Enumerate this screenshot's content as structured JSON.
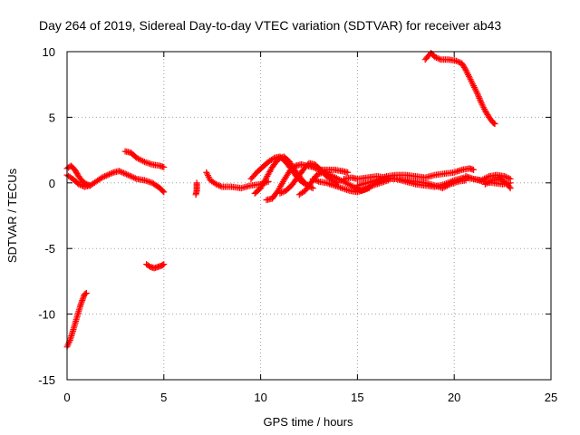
{
  "chart_data": {
    "type": "scatter",
    "title": "Day 264 of 2019, Sidereal Day-to-day VTEC variation (SDTVAR) for receiver ab43",
    "xlabel": "GPS time / hours",
    "ylabel": "SDTVAR / TECUs",
    "xlim": [
      0,
      25
    ],
    "ylim": [
      -15,
      10
    ],
    "x_ticks": [
      0,
      5,
      10,
      15,
      20,
      25
    ],
    "y_ticks": [
      -15,
      -10,
      -5,
      0,
      5,
      10
    ],
    "x_tick_labels": [
      "0",
      "5",
      "10",
      "15",
      "20",
      "25"
    ],
    "y_tick_labels": [
      "-15",
      "-10",
      "-5",
      "0",
      "5",
      "10"
    ],
    "grid": true,
    "marker": "+",
    "series": [
      {
        "name": "SDTVAR",
        "color": "#ff0000",
        "tracks": [
          [
            [
              0.0,
              1.1
            ],
            [
              0.2,
              1.3
            ],
            [
              0.4,
              1.0
            ],
            [
              0.6,
              0.5
            ],
            [
              0.8,
              0.1
            ],
            [
              1.0,
              -0.1
            ],
            [
              1.2,
              -0.2
            ],
            [
              1.5,
              0.1
            ],
            [
              1.8,
              0.4
            ],
            [
              2.1,
              0.6
            ],
            [
              2.4,
              0.8
            ],
            [
              2.7,
              0.9
            ],
            [
              3.0,
              0.7
            ],
            [
              3.3,
              0.5
            ],
            [
              3.6,
              0.3
            ],
            [
              4.0,
              0.2
            ],
            [
              4.4,
              0.0
            ],
            [
              4.8,
              -0.4
            ],
            [
              5.0,
              -0.7
            ]
          ],
          [
            [
              0.0,
              0.6
            ],
            [
              0.3,
              0.3
            ],
            [
              0.6,
              -0.1
            ],
            [
              0.9,
              -0.3
            ],
            [
              1.2,
              -0.2
            ]
          ],
          [
            [
              3.0,
              2.4
            ],
            [
              3.3,
              2.3
            ],
            [
              3.6,
              1.9
            ],
            [
              4.0,
              1.6
            ],
            [
              4.4,
              1.4
            ],
            [
              4.8,
              1.3
            ],
            [
              5.0,
              1.2
            ]
          ],
          [
            [
              0.0,
              -12.5
            ],
            [
              0.15,
              -12.0
            ],
            [
              0.3,
              -11.3
            ],
            [
              0.5,
              -10.3
            ],
            [
              0.7,
              -9.3
            ],
            [
              0.9,
              -8.5
            ],
            [
              1.0,
              -8.4
            ]
          ],
          [
            [
              4.1,
              -6.2
            ],
            [
              4.3,
              -6.4
            ],
            [
              4.5,
              -6.5
            ],
            [
              4.7,
              -6.4
            ],
            [
              4.9,
              -6.3
            ],
            [
              5.0,
              -6.2
            ]
          ],
          [
            [
              6.7,
              0.0
            ],
            [
              6.7,
              -0.3
            ],
            [
              6.7,
              -0.6
            ],
            [
              6.65,
              -0.9
            ]
          ],
          [
            [
              7.2,
              0.8
            ],
            [
              7.4,
              0.2
            ],
            [
              7.7,
              -0.1
            ],
            [
              8.0,
              -0.3
            ],
            [
              8.5,
              -0.3
            ],
            [
              9.0,
              -0.4
            ],
            [
              9.5,
              -0.2
            ],
            [
              10.0,
              -0.1
            ],
            [
              10.4,
              0.1
            ]
          ],
          [
            [
              9.5,
              0.3
            ],
            [
              9.8,
              0.8
            ],
            [
              10.1,
              1.2
            ],
            [
              10.4,
              1.6
            ],
            [
              10.7,
              1.9
            ],
            [
              11.0,
              2.0
            ],
            [
              11.3,
              1.6
            ],
            [
              11.6,
              1.0
            ],
            [
              11.9,
              0.4
            ],
            [
              12.2,
              0.0
            ],
            [
              12.5,
              -0.2
            ]
          ],
          [
            [
              9.7,
              -0.8
            ],
            [
              10.0,
              -0.4
            ],
            [
              10.3,
              0.4
            ],
            [
              10.6,
              1.2
            ],
            [
              10.9,
              1.8
            ],
            [
              11.2,
              2.0
            ],
            [
              11.5,
              1.6
            ],
            [
              11.8,
              0.9
            ],
            [
              12.1,
              0.3
            ],
            [
              12.4,
              -0.2
            ],
            [
              12.7,
              -0.4
            ]
          ],
          [
            [
              10.3,
              -1.3
            ],
            [
              10.6,
              -1.2
            ],
            [
              10.9,
              -0.6
            ],
            [
              11.2,
              0.2
            ],
            [
              11.5,
              0.9
            ],
            [
              11.8,
              1.3
            ],
            [
              12.1,
              1.4
            ],
            [
              12.4,
              1.3
            ],
            [
              12.7,
              1.2
            ],
            [
              13.0,
              1.0
            ],
            [
              13.4,
              1.0
            ],
            [
              13.8,
              1.0
            ],
            [
              14.2,
              0.9
            ],
            [
              14.5,
              0.8
            ]
          ],
          [
            [
              11.0,
              -0.8
            ],
            [
              11.3,
              -0.6
            ],
            [
              11.6,
              -0.2
            ],
            [
              11.9,
              0.4
            ],
            [
              12.2,
              1.0
            ],
            [
              12.5,
              1.5
            ],
            [
              12.8,
              1.4
            ],
            [
              13.1,
              1.0
            ],
            [
              13.4,
              0.5
            ],
            [
              13.7,
              0.2
            ],
            [
              14.0,
              0.0
            ]
          ],
          [
            [
              12.0,
              -0.9
            ],
            [
              12.3,
              -0.6
            ],
            [
              12.6,
              0.0
            ],
            [
              12.9,
              0.6
            ],
            [
              13.2,
              0.8
            ],
            [
              13.6,
              0.6
            ],
            [
              14.0,
              0.3
            ],
            [
              14.4,
              0.0
            ],
            [
              14.8,
              -0.3
            ],
            [
              15.2,
              -0.6
            ],
            [
              15.6,
              -0.4
            ]
          ],
          [
            [
              12.7,
              0.3
            ],
            [
              13.0,
              0.1
            ],
            [
              13.4,
              0.0
            ],
            [
              13.8,
              -0.2
            ],
            [
              14.2,
              -0.4
            ],
            [
              14.6,
              -0.6
            ],
            [
              15.0,
              -0.7
            ],
            [
              15.4,
              -0.5
            ],
            [
              15.8,
              -0.2
            ],
            [
              16.2,
              0.0
            ],
            [
              16.6,
              0.2
            ]
          ],
          [
            [
              14.3,
              0.3
            ],
            [
              14.7,
              0.4
            ],
            [
              15.0,
              0.3
            ],
            [
              15.5,
              0.4
            ],
            [
              16.0,
              0.5
            ],
            [
              16.5,
              0.4
            ],
            [
              17.0,
              0.3
            ],
            [
              17.5,
              0.2
            ],
            [
              18.0,
              0.1
            ],
            [
              18.5,
              0.0
            ],
            [
              19.0,
              -0.2
            ],
            [
              19.4,
              -0.4
            ],
            [
              19.8,
              -0.1
            ],
            [
              20.2,
              0.1
            ],
            [
              20.6,
              0.2
            ]
          ],
          [
            [
              15.0,
              -0.2
            ],
            [
              15.5,
              0.0
            ],
            [
              16.0,
              0.2
            ],
            [
              16.5,
              0.5
            ],
            [
              17.0,
              0.6
            ],
            [
              17.5,
              0.6
            ],
            [
              18.0,
              0.5
            ],
            [
              18.5,
              0.4
            ],
            [
              19.0,
              0.6
            ],
            [
              19.5,
              0.7
            ],
            [
              20.0,
              0.8
            ],
            [
              20.4,
              1.0
            ],
            [
              20.8,
              1.1
            ],
            [
              21.0,
              1.0
            ]
          ],
          [
            [
              16.0,
              0.1
            ],
            [
              16.5,
              0.3
            ],
            [
              17.0,
              0.3
            ],
            [
              17.5,
              0.1
            ],
            [
              18.0,
              -0.1
            ],
            [
              18.5,
              -0.2
            ],
            [
              19.0,
              -0.3
            ],
            [
              19.5,
              -0.1
            ],
            [
              20.0,
              0.2
            ],
            [
              20.5,
              0.4
            ],
            [
              21.0,
              0.3
            ],
            [
              21.5,
              0.1
            ],
            [
              22.0,
              0.0
            ],
            [
              22.5,
              -0.1
            ],
            [
              22.9,
              0.0
            ]
          ],
          [
            [
              20.6,
              0.5
            ],
            [
              21.0,
              0.3
            ],
            [
              21.4,
              0.2
            ],
            [
              21.8,
              0.5
            ],
            [
              22.2,
              0.6
            ],
            [
              22.6,
              0.5
            ],
            [
              22.9,
              0.3
            ]
          ],
          [
            [
              21.6,
              -0.1
            ],
            [
              22.0,
              0.2
            ],
            [
              22.4,
              0.3
            ],
            [
              22.8,
              -0.2
            ],
            [
              22.9,
              -0.4
            ]
          ],
          [
            [
              18.5,
              9.4
            ],
            [
              18.8,
              9.9
            ],
            [
              19.0,
              9.6
            ],
            [
              19.3,
              9.4
            ],
            [
              19.7,
              9.4
            ],
            [
              20.1,
              9.3
            ],
            [
              20.4,
              9.1
            ],
            [
              20.6,
              8.6
            ],
            [
              20.8,
              8.0
            ],
            [
              21.0,
              7.4
            ],
            [
              21.2,
              6.8
            ],
            [
              21.4,
              6.1
            ],
            [
              21.6,
              5.5
            ],
            [
              21.8,
              5.0
            ],
            [
              22.0,
              4.6
            ],
            [
              22.1,
              4.5
            ]
          ]
        ]
      }
    ]
  }
}
